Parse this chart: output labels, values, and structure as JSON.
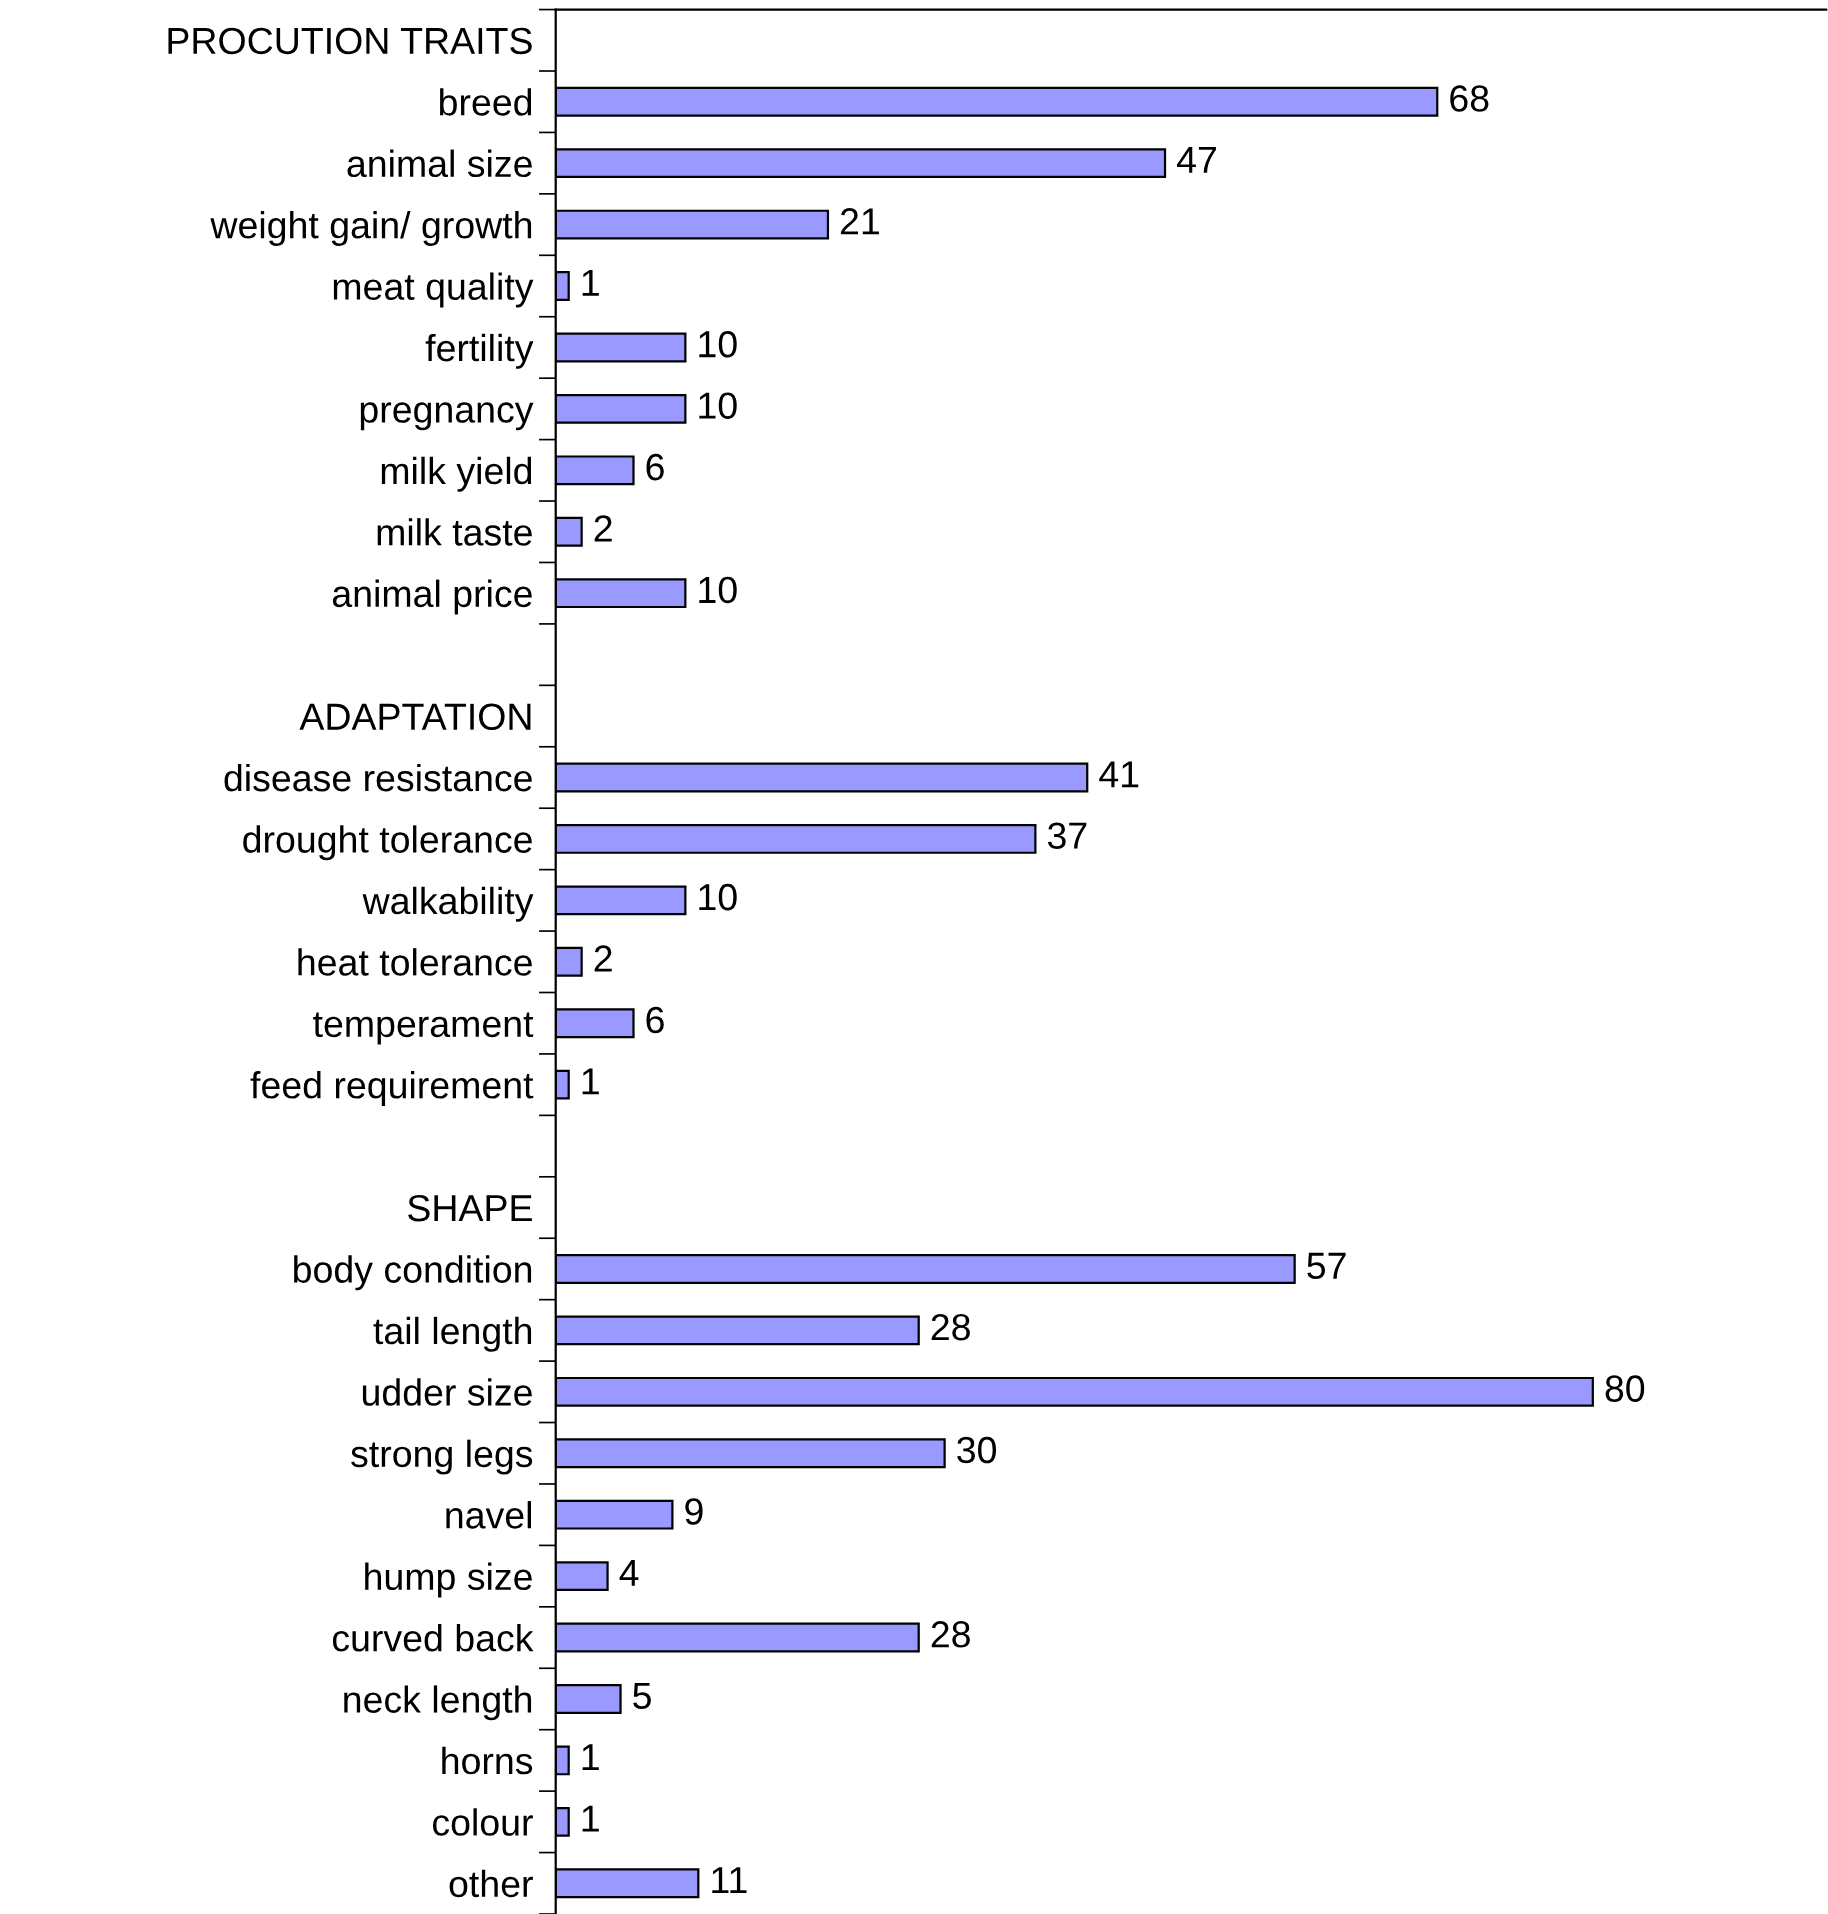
{
  "chart_data": {
    "type": "bar",
    "orientation": "horizontal",
    "categories": [
      "PROCUTION TRAITS",
      "breed",
      "animal size",
      "weight gain/ growth",
      "meat quality",
      "fertility",
      "pregnancy",
      "milk yield",
      "milk taste",
      "animal price",
      null,
      "ADAPTATION",
      "disease resistance",
      "drought tolerance",
      "walkability",
      "heat tolerance",
      "temperament",
      "feed requirement",
      null,
      "SHAPE",
      "body condition",
      "tail length",
      "udder size",
      "strong legs",
      "navel",
      "hump size",
      "curved back",
      "neck length",
      "horns",
      "colour",
      "other"
    ],
    "values": [
      null,
      68,
      47,
      21,
      1,
      10,
      10,
      6,
      2,
      10,
      null,
      null,
      41,
      37,
      10,
      2,
      6,
      1,
      null,
      null,
      57,
      28,
      80,
      30,
      9,
      4,
      28,
      5,
      1,
      1,
      11
    ],
    "color": "#9999ff",
    "xlim": [
      0,
      98
    ],
    "data_labels": true,
    "tick_labels": "y",
    "grid": false,
    "legend": false
  }
}
